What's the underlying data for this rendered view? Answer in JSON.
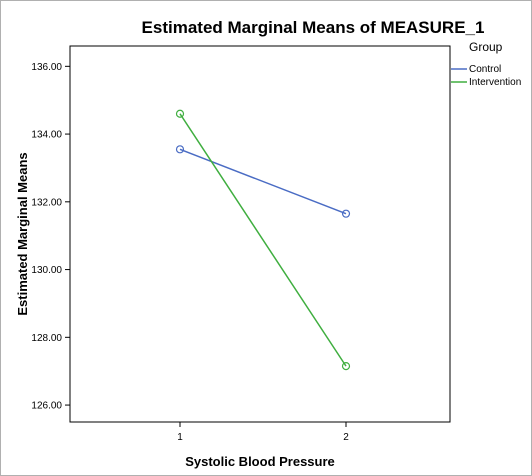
{
  "chart_data": {
    "type": "line",
    "title": "Estimated Marginal Means of MEASURE_1",
    "xlabel": "Systolic Blood Pressure",
    "ylabel": "Estimated Marginal Means",
    "categories": [
      "1",
      "2"
    ],
    "ylim": [
      125.5,
      136.6
    ],
    "yticks": [
      "126.00",
      "128.00",
      "130.00",
      "132.00",
      "134.00",
      "136.00"
    ],
    "grid": false,
    "legend_title": "Group",
    "legend_position": "right",
    "series": [
      {
        "name": "Control",
        "color": "#4a6cc4",
        "values": [
          133.55,
          131.65
        ]
      },
      {
        "name": "Intervention",
        "color": "#3fae3f",
        "values": [
          134.6,
          127.15
        ]
      }
    ]
  }
}
